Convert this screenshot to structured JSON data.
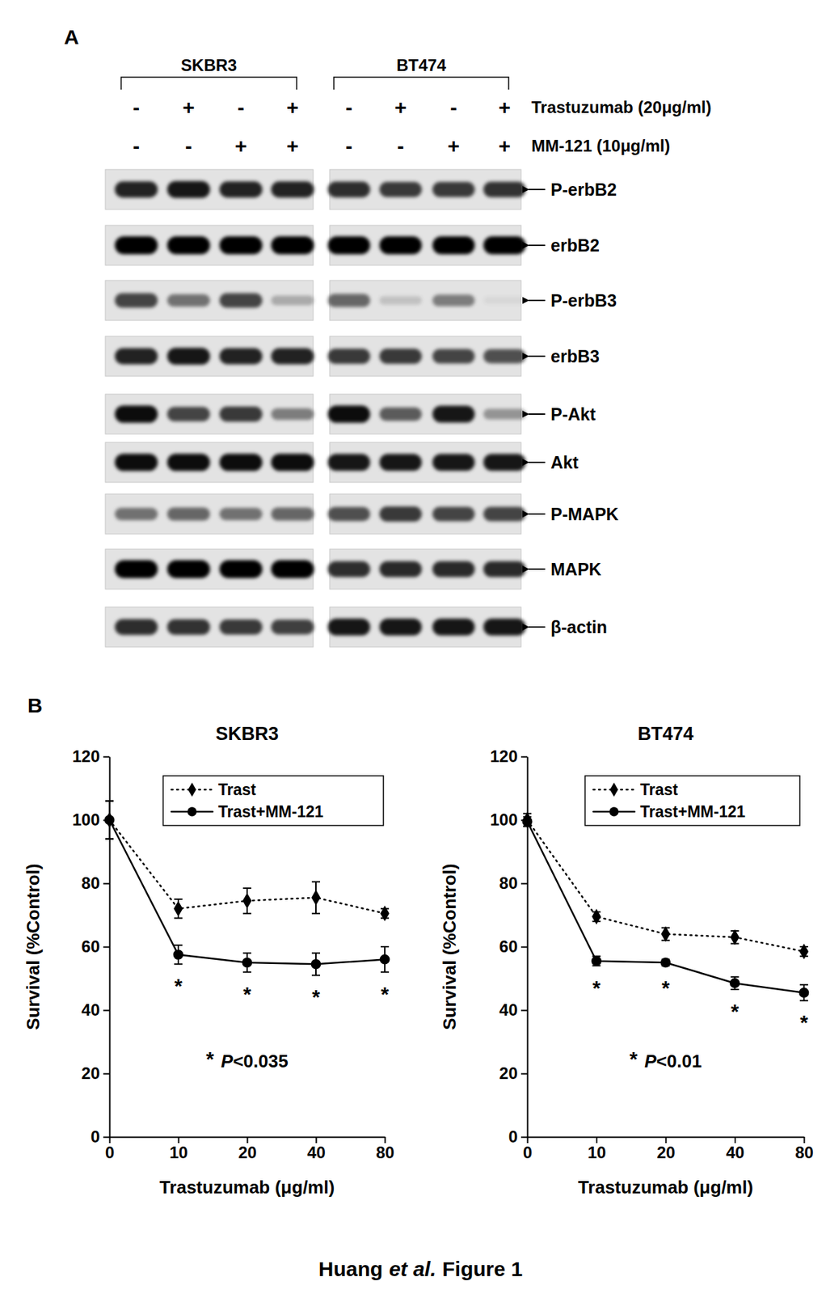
{
  "panel_labels": [
    "A",
    "B"
  ],
  "blot": {
    "cell_lines": [
      "SKBR3",
      "BT474"
    ],
    "treatments": [
      {
        "label": "Trastuzumab (20μg/ml)",
        "signs": [
          [
            "-",
            "+",
            "-",
            "+"
          ],
          [
            "-",
            "+",
            "-",
            "+"
          ]
        ]
      },
      {
        "label": "MM-121 (10μg/ml)",
        "signs": [
          [
            "-",
            "-",
            "+",
            "+"
          ],
          [
            "-",
            "-",
            "+",
            "+"
          ]
        ]
      }
    ],
    "rows": [
      {
        "label": "P-erbB2",
        "intensity": [
          [
            0.85,
            0.9,
            0.85,
            0.85
          ],
          [
            0.8,
            0.75,
            0.75,
            0.78
          ]
        ]
      },
      {
        "label": "erbB2",
        "intensity": [
          [
            1,
            1,
            1,
            1
          ],
          [
            1,
            1,
            1,
            1
          ]
        ]
      },
      {
        "label": "P-erbB3",
        "intensity": [
          [
            0.7,
            0.5,
            0.7,
            0.25
          ],
          [
            0.55,
            0.15,
            0.45,
            0.05
          ]
        ]
      },
      {
        "label": "erbB3",
        "intensity": [
          [
            0.85,
            0.9,
            0.85,
            0.85
          ],
          [
            0.75,
            0.75,
            0.7,
            0.65
          ]
        ]
      },
      {
        "label": "P-Akt",
        "intensity": [
          [
            0.95,
            0.7,
            0.75,
            0.45
          ],
          [
            0.95,
            0.6,
            0.9,
            0.35
          ]
        ]
      },
      {
        "label": "Akt",
        "intensity": [
          [
            0.95,
            0.95,
            0.95,
            0.95
          ],
          [
            0.9,
            0.9,
            0.9,
            0.9
          ]
        ]
      },
      {
        "label": "P-MAPK",
        "intensity": [
          [
            0.5,
            0.55,
            0.5,
            0.55
          ],
          [
            0.65,
            0.75,
            0.7,
            0.7
          ]
        ]
      },
      {
        "label": "MAPK",
        "intensity": [
          [
            1,
            1,
            1,
            1
          ],
          [
            0.8,
            0.82,
            0.82,
            0.82
          ]
        ]
      },
      {
        "label": "β-actin",
        "intensity": [
          [
            0.8,
            0.78,
            0.75,
            0.72
          ],
          [
            0.9,
            0.9,
            0.9,
            0.9
          ]
        ]
      }
    ]
  },
  "chart_data": [
    {
      "type": "line",
      "title": "SKBR3",
      "x_label": "Trastuzumab (μg/ml)",
      "y_label": "Survival (%Control)",
      "categories": [
        "0",
        "10",
        "20",
        "40",
        "80"
      ],
      "ylim": [
        0,
        120
      ],
      "yticks": [
        0,
        20,
        40,
        60,
        80,
        100,
        120
      ],
      "legend": "top-right",
      "series": [
        {
          "name": "Trast",
          "color": "#000000",
          "marker": "diamond",
          "line_style": "dotted",
          "values": [
            100,
            72,
            74.5,
            75.5,
            70.5
          ],
          "errors": [
            6,
            3,
            4,
            5,
            1.5
          ]
        },
        {
          "name": "Trast+MM-121",
          "color": "#000000",
          "marker": "circle",
          "line_style": "solid",
          "values": [
            100,
            57.5,
            55,
            54.5,
            56
          ],
          "errors": [
            6,
            3,
            3,
            3.5,
            4
          ]
        }
      ],
      "annotations": [
        {
          "text": "*",
          "category": "10"
        },
        {
          "text": "*",
          "category": "20"
        },
        {
          "text": "*",
          "category": "40"
        },
        {
          "text": "*",
          "category": "80"
        }
      ],
      "note": {
        "marker": "*",
        "variable": "P",
        "condition": "<0.035"
      }
    },
    {
      "type": "line",
      "title": "BT474",
      "x_label": "Trastuzumab (μg/ml)",
      "y_label": "Survival (%Control)",
      "categories": [
        "0",
        "10",
        "20",
        "40",
        "80"
      ],
      "ylim": [
        0,
        120
      ],
      "yticks": [
        0,
        20,
        40,
        60,
        80,
        100,
        120
      ],
      "legend": "top-right",
      "series": [
        {
          "name": "Trast",
          "color": "#000000",
          "marker": "diamond",
          "line_style": "dotted",
          "values": [
            100,
            69.5,
            64,
            63,
            58.5
          ],
          "errors": [
            2,
            1.5,
            2,
            2,
            1.5
          ]
        },
        {
          "name": "Trast+MM-121",
          "color": "#000000",
          "marker": "circle",
          "line_style": "solid",
          "values": [
            99.5,
            55.5,
            55,
            48.5,
            45.5
          ],
          "errors": [
            1.5,
            1.5,
            1,
            2,
            2.5
          ]
        }
      ],
      "annotations": [
        {
          "text": "*",
          "category": "10"
        },
        {
          "text": "*",
          "category": "20"
        },
        {
          "text": "*",
          "category": "40"
        },
        {
          "text": "*",
          "category": "80"
        }
      ],
      "note": {
        "marker": "*",
        "variable": "P",
        "condition": "<0.01"
      }
    }
  ],
  "caption": {
    "author": "Huang",
    "etal": "et al.",
    "figure": "Figure 1"
  }
}
